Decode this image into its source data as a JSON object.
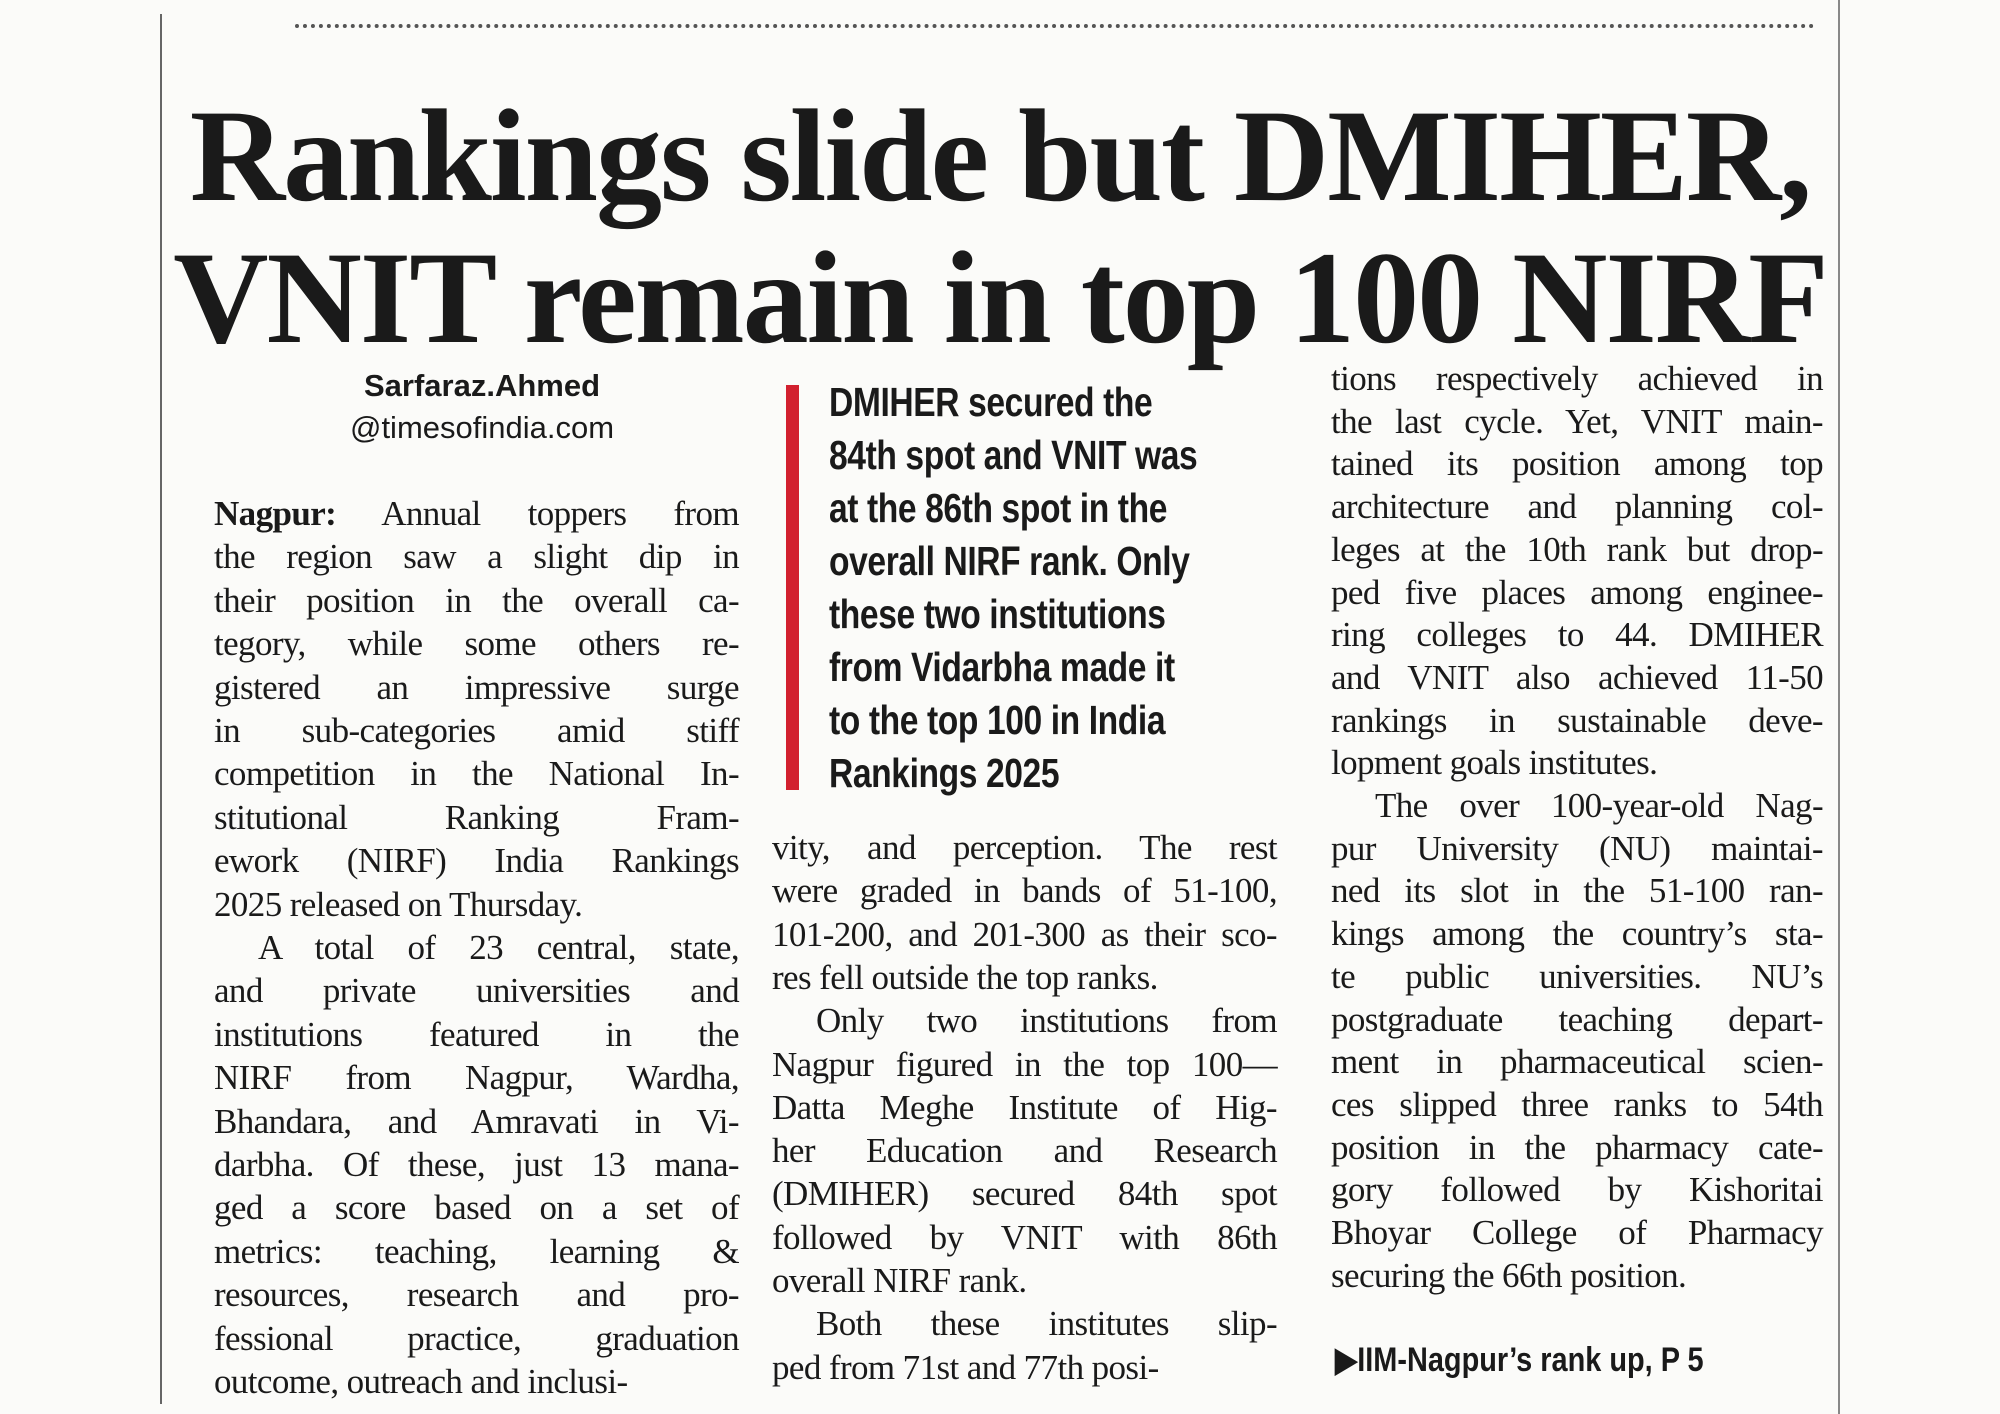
{
  "headline": {
    "lines": [
      "Rankings slide but DMIHER,",
      "VNIT remain in top 100 NIRF"
    ]
  },
  "byline": {
    "name": "Sarfaraz.Ahmed",
    "email": "@timesofindia.com"
  },
  "pull_quote": {
    "lines": [
      "DMIHER secured the",
      "84th spot and VNIT was",
      "at the 86th spot in the",
      "overall NIRF rank. Only",
      "these two institutions",
      "from Vidarbha made it",
      "to the top 100 in India",
      "Rankings 2025"
    ]
  },
  "columns": [
    {
      "paragraphs": [
        {
          "dateline": "Nagpur:",
          "lines": [
            "Annual toppers from",
            "the region saw a slight dip in",
            "their position in the overall ca-",
            "tegory, while some others re-",
            "gistered an impressive surge",
            "in sub-categories amid stiff",
            "competition in the National In-",
            "stitutional Ranking Fram-",
            "ework (NIRF) India Rankings",
            "2025 released on Thursday."
          ]
        },
        {
          "lines": [
            "A total of 23 central, state,",
            "and private universities and",
            "institutions featured in the",
            "NIRF from Nagpur, Wardha,",
            "Bhandara, and Amravati in Vi-",
            "darbha. Of these, just 13 mana-",
            "ged a score based on a set of",
            "metrics: teaching, learning &",
            "resources, research and pro-",
            "fessional practice, graduation",
            "outcome, outreach and inclusi-"
          ]
        }
      ]
    },
    {
      "paragraphs": [
        {
          "lines": [
            "vity, and perception. The rest",
            "were graded in bands of 51-100,",
            "101-200, and 201-300 as their sco-",
            "res fell outside the top ranks."
          ]
        },
        {
          "lines": [
            "Only two institutions from",
            "Nagpur figured in the top 100—",
            "Datta Meghe Institute of Hig-",
            "her Education and Research",
            "(DMIHER) secured 84th spot",
            "followed by VNIT with 86th",
            "overall NIRF rank."
          ]
        },
        {
          "lines": [
            "Both these institutes slip-",
            "ped from 71st and 77th posi-"
          ]
        }
      ]
    },
    {
      "paragraphs": [
        {
          "lines": [
            "tions respectively achieved in",
            "the last cycle. Yet, VNIT main-",
            "tained its position among top",
            "architecture and planning col-",
            "leges at the 10th rank but drop-",
            "ped five places among enginee-",
            "ring colleges to 44. DMIHER",
            "and VNIT also achieved 11-50",
            "rankings in sustainable deve-",
            "lopment goals institutes."
          ]
        },
        {
          "lines": [
            "The over 100-year-old Nag-",
            "pur University (NU) maintai-",
            "ned its slot in the 51-100 ran-",
            "kings among the country’s sta-",
            "te public universities. NU’s",
            "postgraduate teaching depart-",
            "ment in pharmaceutical scien-",
            "ces slipped three ranks to 54th",
            "position in the pharmacy cate-",
            "gory followed by Kishoritai",
            "Bhoyar College of Pharmacy",
            "securing the 66th position."
          ]
        }
      ]
    }
  ],
  "refer": "▶IIM-Nagpur’s rank up, P 5"
}
